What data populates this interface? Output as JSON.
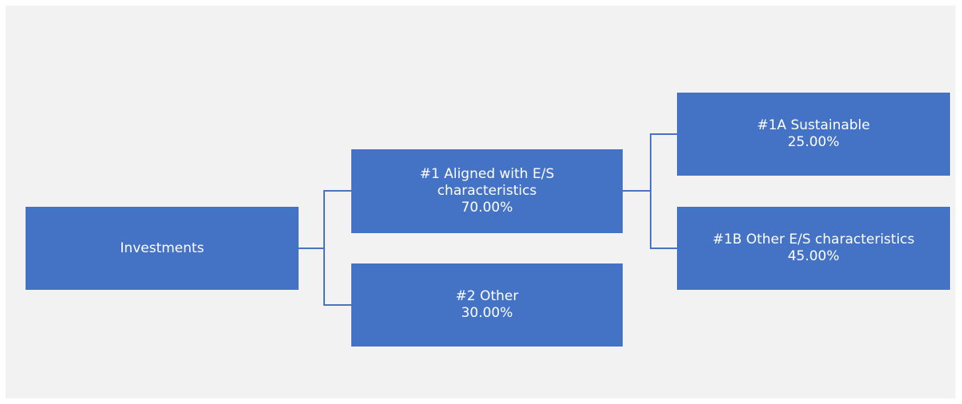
{
  "colors": {
    "background": "#f2f2f2",
    "box_fill": "#4472c4",
    "box_text": "#ffffff",
    "connector": "#4a74c0"
  },
  "diagram": {
    "root": {
      "label": "Investments"
    },
    "aligned": {
      "label_line1": "#1 Aligned with E/S",
      "label_line2": "characteristics",
      "value": "70.00%"
    },
    "other": {
      "label": "#2 Other",
      "value": "30.00%"
    },
    "sustainable": {
      "label": "#1A Sustainable",
      "value": "25.00%"
    },
    "other_es": {
      "label": "#1B Other E/S characteristics",
      "value": "45.00%"
    }
  }
}
